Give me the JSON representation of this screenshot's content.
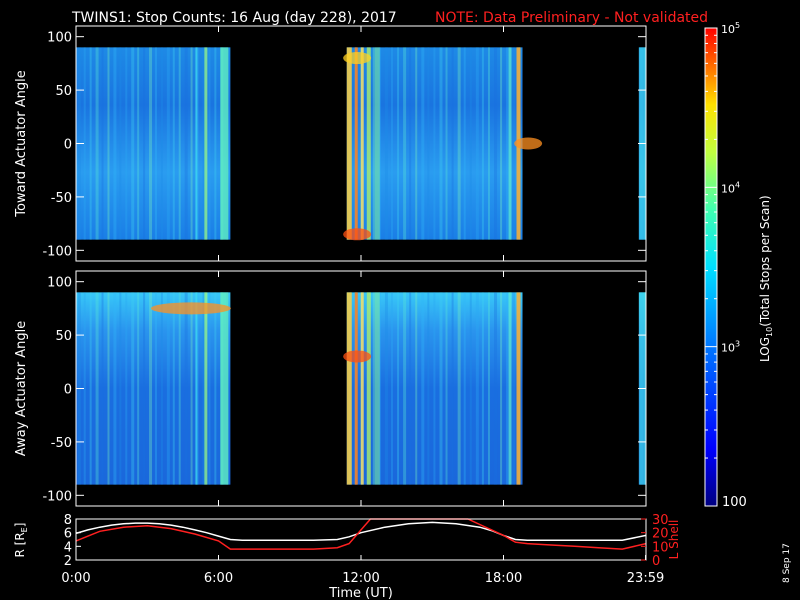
{
  "header": {
    "title": "TWINS1: Stop Counts: 16 Aug (day 228), 2017",
    "note": "NOTE: Data Preliminary - Not validated"
  },
  "colors": {
    "background": "#000000",
    "axes": "#ffffff",
    "note": "#ff2020",
    "r_line": "#ffffff",
    "l_shell_line": "#ff2020"
  },
  "chart_data": [
    {
      "type": "heatmap",
      "name": "toward-panel",
      "ylabel": "Toward Actuator Angle",
      "ylim": [
        -110,
        110
      ],
      "yticks": [
        "100",
        "50",
        "0",
        "-50",
        "-100"
      ],
      "ytick_values": [
        100,
        50,
        0,
        -50,
        -100
      ],
      "xlim": [
        0,
        24
      ],
      "data_extent_y": [
        -90,
        90
      ],
      "data_time_intervals_hours": [
        [
          0.0,
          6.5
        ],
        [
          11.4,
          18.8
        ],
        [
          23.7,
          24.0
        ]
      ],
      "bright_features": [
        {
          "time_hours": 11.5,
          "angle": -85,
          "level": "high (orange/red)"
        },
        {
          "time_hours": 11.5,
          "angle": 80,
          "level": "high (yellow/orange)"
        },
        {
          "time_hours": 18.7,
          "angle": 0,
          "level": "high (orange)"
        }
      ]
    },
    {
      "type": "heatmap",
      "name": "away-panel",
      "ylabel": "Away Actuator Angle",
      "ylim": [
        -110,
        110
      ],
      "yticks": [
        "100",
        "50",
        "0",
        "-50",
        "-100"
      ],
      "ytick_values": [
        100,
        50,
        0,
        -50,
        -100
      ],
      "xlim": [
        0,
        24
      ],
      "data_extent_y": [
        -90,
        90
      ],
      "data_time_intervals_hours": [
        [
          0.0,
          6.5
        ],
        [
          11.4,
          18.8
        ],
        [
          23.7,
          24.0
        ]
      ],
      "bright_features": [
        {
          "time_hours": 4.5,
          "angle": 75,
          "level": "high (orange)"
        },
        {
          "time_hours": 11.5,
          "angle": 30,
          "level": "high (orange/red)"
        }
      ]
    },
    {
      "type": "line",
      "name": "orbit-panel",
      "xlabel": "Time (UT)",
      "xticks": [
        "0:00",
        "6:00",
        "12:00",
        "18:00",
        "23:59"
      ],
      "xtick_values": [
        0,
        6,
        12,
        18,
        23.98
      ],
      "y_left": {
        "label": "R [R",
        "label_sub": "E",
        "label_end": "]",
        "ylim": [
          2,
          8
        ],
        "ticks": [
          "2",
          "4",
          "6",
          "8"
        ],
        "tick_values": [
          2,
          4,
          6,
          8
        ]
      },
      "y_right": {
        "label": "L Shell",
        "ylim": [
          0,
          30
        ],
        "ticks": [
          "0",
          "10",
          "20",
          "30"
        ],
        "tick_values": [
          0,
          10,
          20,
          30
        ]
      },
      "series": [
        {
          "name": "R [RE]",
          "axis": "left",
          "x": [
            0,
            0.5,
            1,
            1.5,
            2,
            2.5,
            3,
            3.5,
            4,
            4.5,
            5,
            5.5,
            6,
            6.5,
            7,
            8,
            9,
            10,
            11,
            11.5,
            12,
            13,
            14,
            15,
            16,
            17,
            17.5,
            18,
            18.5,
            19,
            20,
            21,
            22,
            23,
            24
          ],
          "y": [
            5.9,
            6.4,
            6.8,
            7.1,
            7.3,
            7.4,
            7.4,
            7.3,
            7.1,
            6.8,
            6.4,
            6.0,
            5.5,
            5.0,
            4.9,
            4.9,
            4.9,
            4.9,
            5.0,
            5.4,
            6.0,
            6.8,
            7.3,
            7.5,
            7.3,
            6.8,
            6.3,
            5.6,
            5.0,
            4.9,
            4.9,
            4.9,
            4.9,
            4.9,
            5.6
          ]
        },
        {
          "name": "L Shell",
          "axis": "right",
          "x": [
            0,
            1,
            2,
            3,
            4,
            5,
            6,
            6.5,
            7,
            8,
            9,
            10,
            11,
            11.5,
            12,
            12.4,
            16.5,
            17,
            17.5,
            18,
            18.5,
            19,
            20,
            21,
            22,
            23,
            24
          ],
          "y": [
            14,
            21,
            24,
            25,
            23,
            19,
            14,
            8,
            8,
            8,
            8,
            8,
            9,
            12,
            22,
            30,
            30,
            26,
            22,
            18,
            13,
            12,
            11,
            10,
            9,
            8,
            12
          ]
        }
      ]
    }
  ],
  "colorbar": {
    "label": "LOG",
    "label_sub": "10",
    "label_rest": "(Total Stops per Scan)",
    "tick_base": [
      "10",
      "10",
      "10"
    ],
    "tick_exponents": [
      "5",
      "4",
      "3"
    ],
    "tick_values": [
      100000,
      10000,
      1000
    ],
    "bottom_label": "100",
    "range": [
      100,
      100000
    ],
    "scale": "log"
  },
  "date_stamp": "8 Sep 17"
}
